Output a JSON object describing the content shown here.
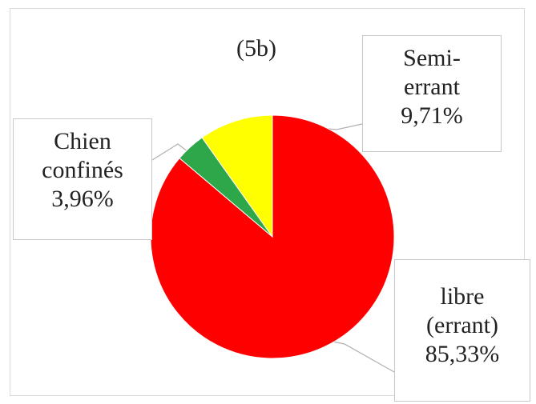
{
  "chart_data": {
    "type": "pie",
    "title": "(5b)",
    "slices": [
      {
        "label_lines": [
          "libre",
          "(errant)"
        ],
        "value_text": "85,33%",
        "value": 85.33,
        "color": "#ff0000"
      },
      {
        "label_lines": [
          "Chien",
          "confinés"
        ],
        "value_text": "3,96%",
        "value": 3.96,
        "color": "#2ea64a"
      },
      {
        "label_lines": [
          "Semi-",
          "errant"
        ],
        "value_text": "9,71%",
        "value": 9.71,
        "color": "#ffff00"
      }
    ]
  }
}
